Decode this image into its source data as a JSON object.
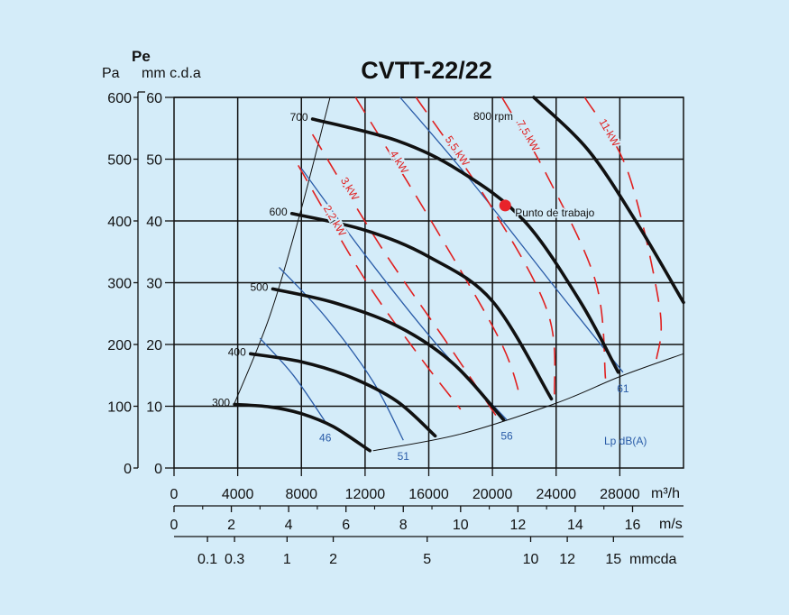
{
  "chart_data": {
    "type": "line",
    "title": "CVTT-22/22",
    "x": {
      "label": "m³/h",
      "range": [
        0,
        32000
      ],
      "ticks": [
        0,
        4000,
        8000,
        12000,
        16000,
        20000,
        24000,
        28000
      ],
      "tick_labels": [
        "0",
        "4000",
        "8000",
        "12000",
        "16000",
        "20000",
        "24000",
        "28000"
      ]
    },
    "y": {
      "label_pa": "Pa",
      "label_pe": "Pe",
      "label_mm": "mm c.d.a",
      "range_pa": [
        0,
        600
      ],
      "ticks_pa": [
        0,
        100,
        200,
        300,
        400,
        500,
        600
      ],
      "tick_labels_pa": [
        "0",
        "100",
        "200",
        "300",
        "400",
        "500",
        "600"
      ],
      "tick_labels_mm": [
        "0",
        "10",
        "20",
        "30",
        "40",
        "50",
        "60"
      ]
    },
    "velocity_axis": {
      "label": "m/s",
      "ticks": [
        [
          0,
          "0"
        ],
        [
          3600,
          "2"
        ],
        [
          7200,
          "4"
        ],
        [
          10800,
          "6"
        ],
        [
          14400,
          "8"
        ],
        [
          18000,
          "10"
        ],
        [
          21600,
          "12"
        ],
        [
          25200,
          "14"
        ],
        [
          28800,
          "16"
        ]
      ]
    },
    "dynamic_pressure_axis": {
      "label": "mmcda",
      "ticks": [
        [
          2100,
          "0.1"
        ],
        [
          3800,
          "0.3"
        ],
        [
          7100,
          "1"
        ],
        [
          10000,
          "2"
        ],
        [
          15900,
          "5"
        ],
        [
          22400,
          "10"
        ],
        [
          24700,
          "12"
        ],
        [
          27600,
          "15"
        ]
      ]
    },
    "grid": true,
    "speed_curves": [
      {
        "label": "300",
        "points": [
          [
            3800,
            103
          ],
          [
            6000,
            99
          ],
          [
            8000,
            88
          ],
          [
            10000,
            67
          ],
          [
            12300,
            28
          ]
        ]
      },
      {
        "label": "400",
        "points": [
          [
            4800,
            185
          ],
          [
            8000,
            172
          ],
          [
            11000,
            148
          ],
          [
            14000,
            108
          ],
          [
            16400,
            52
          ]
        ]
      },
      {
        "label": "500",
        "points": [
          [
            6200,
            290
          ],
          [
            10000,
            268
          ],
          [
            14000,
            230
          ],
          [
            17500,
            170
          ],
          [
            20700,
            78
          ]
        ]
      },
      {
        "label": "600",
        "points": [
          [
            7400,
            412
          ],
          [
            12000,
            385
          ],
          [
            16000,
            342
          ],
          [
            20000,
            270
          ],
          [
            23700,
            112
          ]
        ]
      },
      {
        "label": "700",
        "points": [
          [
            8700,
            565
          ],
          [
            14000,
            530
          ],
          [
            18000,
            480
          ],
          [
            22000,
            400
          ],
          [
            25500,
            270
          ],
          [
            27900,
            155
          ]
        ]
      },
      {
        "label": "800 rpm",
        "points": [
          [
            22600,
            600
          ],
          [
            26000,
            515
          ],
          [
            29000,
            400
          ],
          [
            32000,
            268
          ]
        ]
      }
    ],
    "power_lines": [
      {
        "label": "2,2 kW",
        "points": [
          [
            7800,
            490
          ],
          [
            12000,
            305
          ],
          [
            15500,
            178
          ],
          [
            18000,
            95
          ]
        ]
      },
      {
        "label": "3 kW",
        "points": [
          [
            8700,
            540
          ],
          [
            13000,
            358
          ],
          [
            17000,
            208
          ],
          [
            20400,
            78
          ]
        ]
      },
      {
        "label": "4 kW",
        "points": [
          [
            11400,
            600
          ],
          [
            16500,
            385
          ],
          [
            20500,
            205
          ],
          [
            21800,
            110
          ]
        ]
      },
      {
        "label": "5,5 kW",
        "points": [
          [
            15200,
            600
          ],
          [
            20000,
            420
          ],
          [
            23500,
            250
          ],
          [
            23900,
            115
          ]
        ]
      },
      {
        "label": "7,5 kW",
        "points": [
          [
            20600,
            600
          ],
          [
            23500,
            470
          ],
          [
            26500,
            300
          ],
          [
            27100,
            145
          ]
        ]
      },
      {
        "label": "11 kW",
        "points": [
          [
            25800,
            600
          ],
          [
            28500,
            480
          ],
          [
            30500,
            260
          ],
          [
            30300,
            175
          ]
        ]
      }
    ],
    "noise_lines": [
      {
        "label": "46",
        "points": [
          [
            5400,
            210
          ],
          [
            7500,
            150
          ],
          [
            9500,
            75
          ]
        ]
      },
      {
        "label": "51",
        "points": [
          [
            6600,
            325
          ],
          [
            9500,
            245
          ],
          [
            12500,
            140
          ],
          [
            14400,
            45
          ]
        ]
      },
      {
        "label": "56",
        "points": [
          [
            8000,
            485
          ],
          [
            12000,
            345
          ],
          [
            16500,
            200
          ],
          [
            20900,
            78
          ]
        ]
      },
      {
        "label": "61",
        "points": [
          [
            14200,
            600
          ],
          [
            18500,
            470
          ],
          [
            24000,
            290
          ],
          [
            28200,
            155
          ]
        ]
      }
    ],
    "noise_unit": "Lp dB(A)",
    "limit_curves": [
      {
        "name": "left",
        "points": [
          [
            3800,
            105
          ],
          [
            6000,
            245
          ],
          [
            8000,
            420
          ],
          [
            9800,
            600
          ]
        ]
      },
      {
        "name": "right",
        "points": [
          [
            12500,
            28
          ],
          [
            18000,
            55
          ],
          [
            24000,
            105
          ],
          [
            28000,
            148
          ],
          [
            32000,
            185
          ]
        ]
      }
    ],
    "operating_point": {
      "label": "Punto de trabajo",
      "x": 20800,
      "y": 425
    }
  }
}
